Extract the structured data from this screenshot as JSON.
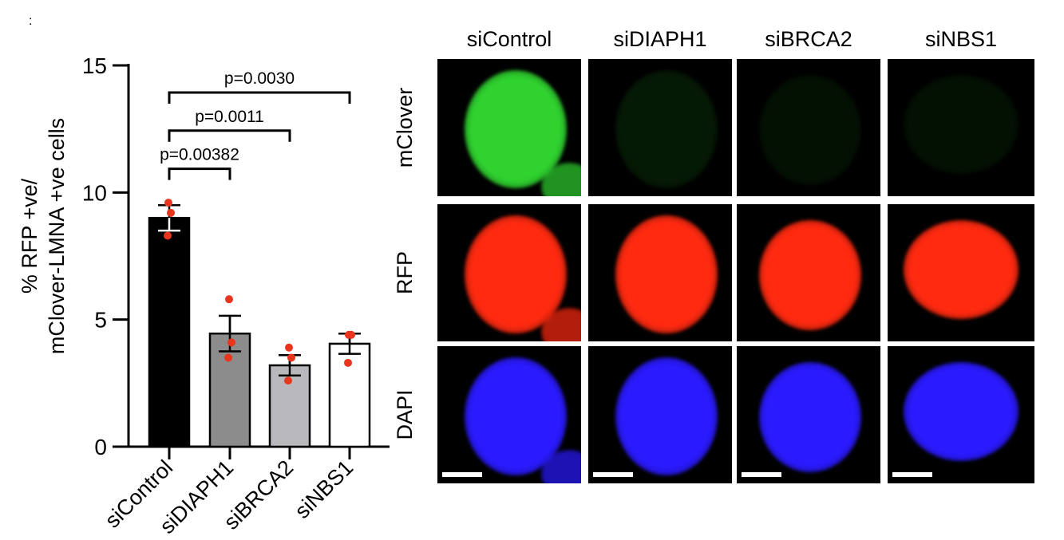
{
  "corner_mark": ":",
  "chart_data": {
    "type": "bar",
    "categories": [
      "siControl",
      "siDIAPH1",
      "siBRCA2",
      "siNBS1"
    ],
    "values": [
      9.0,
      4.45,
      3.2,
      4.05
    ],
    "errors": [
      0.5,
      0.7,
      0.4,
      0.4
    ],
    "points": [
      [
        9.6,
        9.2,
        8.3
      ],
      [
        5.8,
        4.1,
        3.5
      ],
      [
        3.9,
        3.5,
        2.6
      ],
      [
        4.4,
        4.4,
        3.3
      ]
    ],
    "bar_colors": [
      "#000000",
      "#8c8c8c",
      "#b9b9bd",
      "#ffffff"
    ],
    "point_color": "#e8361e",
    "ylabel_lines": [
      "% RFP +ve/",
      "mClover-LMNA +ve cells"
    ],
    "ylim": [
      0,
      15
    ],
    "yticks": [
      0,
      5,
      10,
      15
    ],
    "annotations": [
      {
        "from": 0,
        "to": 1,
        "text": "p=0.00382",
        "level": 12.0
      },
      {
        "from": 0,
        "to": 2,
        "text": "p=0.0011",
        "level": 13.5
      },
      {
        "from": 0,
        "to": 3,
        "text": "p=0.0030",
        "level": 15.0
      }
    ]
  },
  "microscopy": {
    "columns": [
      "siControl",
      "siDIAPH1",
      "siBRCA2",
      "siNBS1"
    ],
    "rows": [
      {
        "label": "mClover",
        "color": "#2fd22f",
        "intensity": [
          1.0,
          0.12,
          0.08,
          0.08
        ]
      },
      {
        "label": "RFP",
        "color": "#ff2a10",
        "intensity": [
          1.0,
          1.0,
          1.0,
          1.0
        ]
      },
      {
        "label": "DAPI",
        "color": "#2a1aff",
        "intensity": [
          1.0,
          1.0,
          1.0,
          1.0
        ]
      }
    ]
  }
}
